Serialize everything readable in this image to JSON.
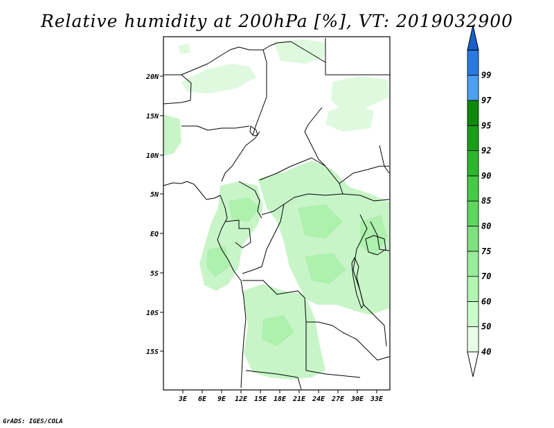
{
  "title": "Relative humidity at 200hPa [%], VT: 2019032900",
  "footer": "GrADS: IGES/COLA",
  "map": {
    "lat_labels": [
      "20N",
      "15N",
      "10N",
      "5N",
      "EQ",
      "5S",
      "10S",
      "15S"
    ],
    "lon_labels": [
      "3E",
      "6E",
      "9E",
      "12E",
      "15E",
      "18E",
      "21E",
      "24E",
      "27E",
      "30E",
      "33E"
    ]
  },
  "colorbar": {
    "levels": [
      "40",
      "50",
      "60",
      "70",
      "75",
      "80",
      "85",
      "90",
      "92",
      "95",
      "97",
      "99"
    ],
    "colors": [
      "#e6ffe6",
      "#ccffcc",
      "#b3f5b3",
      "#99ec99",
      "#7fe07f",
      "#5fd65f",
      "#46c946",
      "#2db62d",
      "#1a9e1a",
      "#0f8a0f",
      "#4d9fef",
      "#2a7ae0",
      "#1a5fcf"
    ],
    "under_color": "#ffffff"
  },
  "colors": {
    "land_border": "#000000",
    "rh_light": "#c8f5c8",
    "rh_mid": "#aef0ae"
  }
}
